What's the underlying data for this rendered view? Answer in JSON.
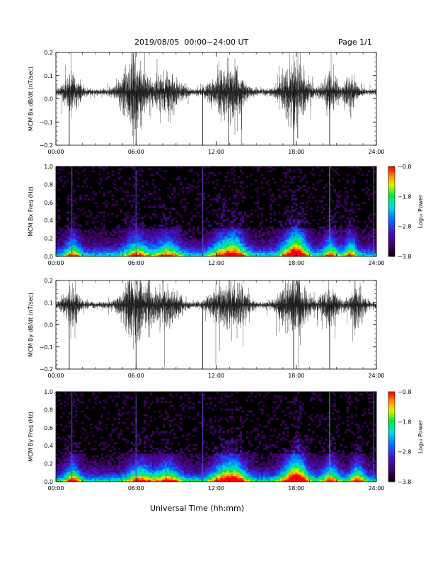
{
  "header": {
    "title": "2019/08/05  00:00−24:00 UT",
    "page": "Page 1/1"
  },
  "chart_data": [
    {
      "type": "line",
      "ylabel": "MCM Bx dB/dt (nT/sec)",
      "ylim": [
        -0.2,
        0.2
      ],
      "yticks": [
        "0.2",
        "0.1",
        "0.0",
        "−0.1",
        "−0.2"
      ],
      "xticks": [
        "00:00",
        "06:00",
        "12:00",
        "18:00",
        "24:00"
      ],
      "xlim_hours": [
        0,
        24
      ],
      "baseline": 0.03,
      "activity_hours": [
        [
          1.2,
          0.6
        ],
        [
          5.8,
          1.0
        ],
        [
          6.0,
          1.0
        ],
        [
          8.3,
          1.0
        ],
        [
          12.4,
          1.0
        ],
        [
          13.5,
          0.8
        ],
        [
          17.5,
          0.9
        ],
        [
          18.2,
          0.8
        ],
        [
          20.5,
          0.6
        ],
        [
          22.0,
          0.5
        ]
      ],
      "series": [
        {
          "values_description": "Continuous waveform, amplitude envelope increasing during 05:30–09:00 and 11:30–14:00"
        }
      ]
    },
    {
      "type": "heatmap",
      "ylabel": "MCM Bx Freq (Hz)",
      "ylim": [
        0.0,
        1.0
      ],
      "yticks": [
        "1.0",
        "0.8",
        "0.6",
        "0.4",
        "0.2",
        "0.0"
      ],
      "xticks": [
        "00:00",
        "06:00",
        "12:00",
        "18:00",
        "24:00"
      ],
      "colorbar": {
        "label": "Log₁₀ Power",
        "ticks": [
          "−0.8",
          "−1.8",
          "−2.8",
          "−3.8"
        ],
        "range": [
          -3.8,
          -0.8
        ]
      },
      "spikes_hours": [
        1.2,
        6.0,
        11.0,
        20.5,
        23.8
      ]
    },
    {
      "type": "line",
      "ylabel": "MCM By dB/dt (nT/sec)",
      "ylim": [
        -0.2,
        0.2
      ],
      "yticks": [
        "0.2",
        "0.1",
        "0.0",
        "−0.1",
        "−0.2"
      ],
      "xticks": [
        "00:00",
        "06:00",
        "12:00",
        "18:00",
        "24:00"
      ],
      "xlim_hours": [
        0,
        24
      ],
      "baseline": 0.09,
      "activity_hours": [
        [
          1.2,
          0.6
        ],
        [
          5.8,
          1.0
        ],
        [
          6.2,
          1.0
        ],
        [
          8.3,
          1.0
        ],
        [
          12.4,
          1.0
        ],
        [
          13.5,
          0.9
        ],
        [
          17.5,
          0.9
        ],
        [
          18.2,
          0.8
        ],
        [
          20.5,
          0.7
        ],
        [
          22.5,
          0.6
        ]
      ],
      "series": [
        {
          "values_description": "Continuous waveform, offset near 0.09 nT/sec, saturating during 05:30–09:00 and 11:30–14:00"
        }
      ]
    },
    {
      "type": "heatmap",
      "ylabel": "MCM By Freq (Hz)",
      "ylim": [
        0.0,
        1.0
      ],
      "yticks": [
        "1.0",
        "0.8",
        "0.6",
        "0.4",
        "0.2",
        "0.0"
      ],
      "xticks": [
        "00:00",
        "06:00",
        "12:00",
        "18:00",
        "24:00"
      ],
      "colorbar": {
        "label": "Log₁₀ Power",
        "ticks": [
          "−0.8",
          "−1.8",
          "−2.8",
          "−3.8"
        ],
        "range": [
          -3.8,
          -0.8
        ]
      },
      "spikes_hours": [
        1.2,
        6.0,
        11.0,
        20.5,
        23.8
      ]
    }
  ],
  "footer": {
    "xlabel": "Universal Time (hh:mm)"
  }
}
